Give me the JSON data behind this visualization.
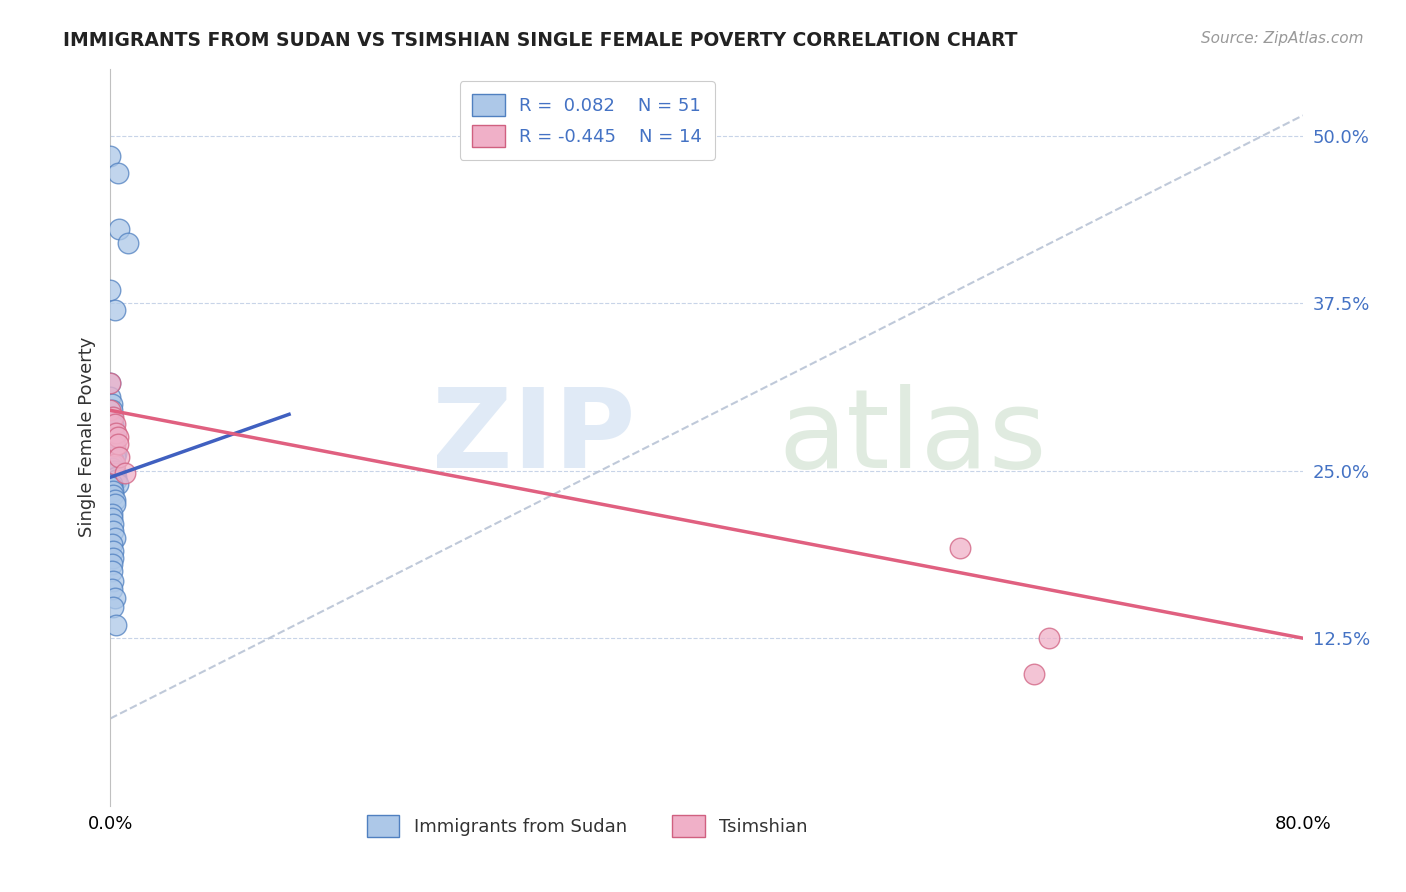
{
  "title": "IMMIGRANTS FROM SUDAN VS TSIMSHIAN SINGLE FEMALE POVERTY CORRELATION CHART",
  "source": "Source: ZipAtlas.com",
  "ylabel": "Single Female Poverty",
  "ytick_values": [
    0.125,
    0.25,
    0.375,
    0.5
  ],
  "xlim": [
    0.0,
    0.8
  ],
  "ylim": [
    0.0,
    0.55
  ],
  "color_blue": "#adc8e8",
  "color_pink": "#f0b0c8",
  "edge_blue": "#5080c0",
  "edge_pink": "#d06080",
  "trendline_blue": "#4060c0",
  "trendline_pink": "#e06080",
  "trendline_dashed_color": "#b0bcd0",
  "background": "#ffffff",
  "legend_text_color": "#4472c4",
  "sudan_x": [
    0.0,
    0.005,
    0.006,
    0.012,
    0.0,
    0.003,
    0.0,
    0.0,
    0.001,
    0.001,
    0.001,
    0.002,
    0.002,
    0.002,
    0.003,
    0.002,
    0.002,
    0.003,
    0.004,
    0.003,
    0.001,
    0.002,
    0.001,
    0.001,
    0.002,
    0.003,
    0.003,
    0.004,
    0.004,
    0.005,
    0.001,
    0.001,
    0.002,
    0.002,
    0.003,
    0.003,
    0.001,
    0.001,
    0.002,
    0.002,
    0.003,
    0.001,
    0.002,
    0.002,
    0.001,
    0.001,
    0.002,
    0.001,
    0.003,
    0.002,
    0.004
  ],
  "sudan_y": [
    0.485,
    0.472,
    0.43,
    0.42,
    0.385,
    0.37,
    0.315,
    0.305,
    0.3,
    0.295,
    0.29,
    0.285,
    0.283,
    0.278,
    0.275,
    0.27,
    0.267,
    0.265,
    0.263,
    0.26,
    0.26,
    0.258,
    0.255,
    0.252,
    0.25,
    0.25,
    0.248,
    0.245,
    0.243,
    0.24,
    0.24,
    0.238,
    0.235,
    0.232,
    0.228,
    0.225,
    0.218,
    0.215,
    0.21,
    0.205,
    0.2,
    0.195,
    0.19,
    0.185,
    0.18,
    0.175,
    0.168,
    0.162,
    0.155,
    0.148,
    0.135
  ],
  "tsimshian_x": [
    0.0,
    0.0,
    0.002,
    0.003,
    0.003,
    0.003,
    0.004,
    0.005,
    0.005,
    0.006,
    0.01,
    0.57,
    0.63,
    0.62
  ],
  "tsimshian_y": [
    0.315,
    0.295,
    0.29,
    0.285,
    0.268,
    0.255,
    0.278,
    0.275,
    0.27,
    0.26,
    0.248,
    0.192,
    0.125,
    0.098
  ],
  "trendline_blue_x0": 0.0,
  "trendline_blue_x1": 0.12,
  "trendline_blue_y0": 0.245,
  "trendline_blue_y1": 0.292,
  "trendline_pink_x0": 0.0,
  "trendline_pink_x1": 0.8,
  "trendline_pink_y0": 0.295,
  "trendline_pink_y1": 0.125,
  "trendline_dash_x0": 0.0,
  "trendline_dash_x1": 0.8,
  "trendline_dash_y0": 0.065,
  "trendline_dash_y1": 0.515
}
